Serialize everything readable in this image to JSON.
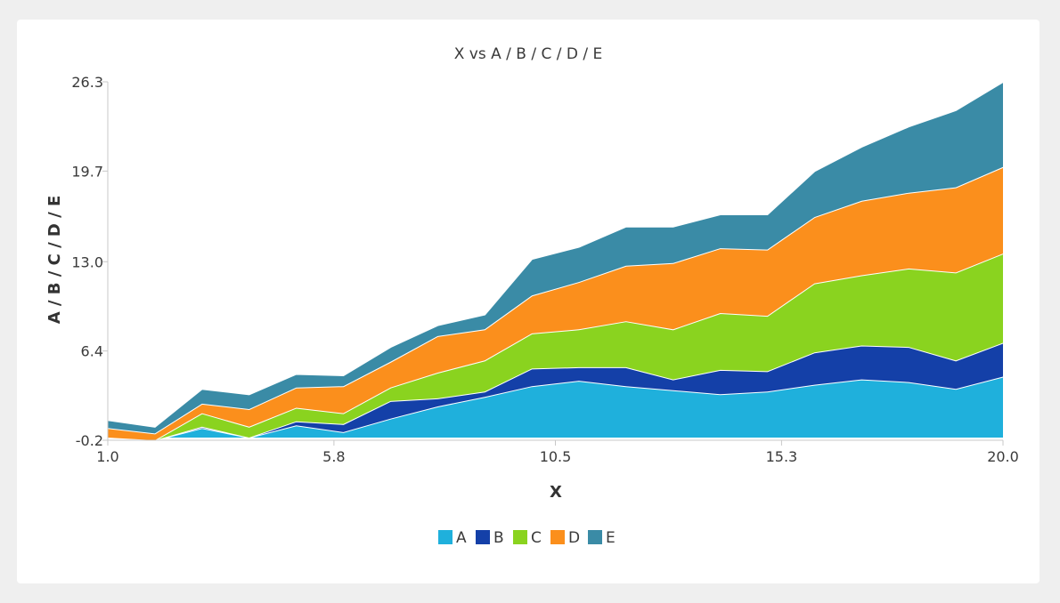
{
  "chart_data": {
    "type": "area",
    "stacked": true,
    "title": "X vs A / B / C / D / E",
    "xlabel": "X",
    "ylabel": "A / B / C / D / E",
    "xlim": [
      1.0,
      20.0
    ],
    "ylim": [
      -0.2,
      26.3
    ],
    "xticks": [
      "1.0",
      "5.8",
      "10.5",
      "15.3",
      "20.0"
    ],
    "yticks": [
      "-0.2",
      "6.4",
      "13.0",
      "19.7",
      "26.3"
    ],
    "grid": false,
    "legend_position": "bottom",
    "x": [
      1.0,
      2.0,
      3.0,
      4.0,
      5.0,
      6.0,
      7.0,
      8.0,
      9.0,
      10.0,
      11.0,
      12.0,
      13.0,
      14.0,
      15.0,
      16.0,
      17.0,
      18.0,
      19.0,
      20.0
    ],
    "series": [
      {
        "name": "A",
        "color": "#1fb0dc",
        "values": [
          0.0,
          -0.2,
          0.7,
          0.0,
          0.9,
          0.4,
          1.4,
          2.3,
          3.0,
          3.8,
          4.2,
          3.8,
          3.5,
          3.2,
          3.4,
          3.9,
          4.3,
          4.1,
          3.6,
          4.5
        ]
      },
      {
        "name": "B",
        "color": "#1440a8",
        "values": [
          0.0,
          0.0,
          0.1,
          0.0,
          0.3,
          0.6,
          1.3,
          0.6,
          0.4,
          1.3,
          1.0,
          1.4,
          0.8,
          1.8,
          1.5,
          2.4,
          2.5,
          2.6,
          2.1,
          2.5
        ]
      },
      {
        "name": "C",
        "color": "#8ad31f",
        "values": [
          0.0,
          0.0,
          1.0,
          0.8,
          1.0,
          0.8,
          1.0,
          1.9,
          2.3,
          2.6,
          2.8,
          3.4,
          3.7,
          4.2,
          4.1,
          5.1,
          5.2,
          5.8,
          6.5,
          6.6
        ]
      },
      {
        "name": "D",
        "color": "#fb8f1c",
        "values": [
          0.7,
          0.5,
          0.7,
          1.3,
          1.5,
          2.0,
          1.9,
          2.7,
          2.3,
          2.8,
          3.5,
          4.1,
          4.9,
          4.8,
          4.9,
          4.9,
          5.5,
          5.6,
          6.3,
          6.4
        ]
      },
      {
        "name": "E",
        "color": "#3a8ba6",
        "values": [
          0.6,
          0.5,
          1.1,
          1.1,
          1.0,
          0.8,
          1.1,
          0.8,
          1.1,
          2.7,
          2.6,
          2.9,
          2.7,
          2.5,
          2.6,
          3.4,
          4.0,
          4.9,
          5.7,
          6.3
        ]
      }
    ]
  }
}
